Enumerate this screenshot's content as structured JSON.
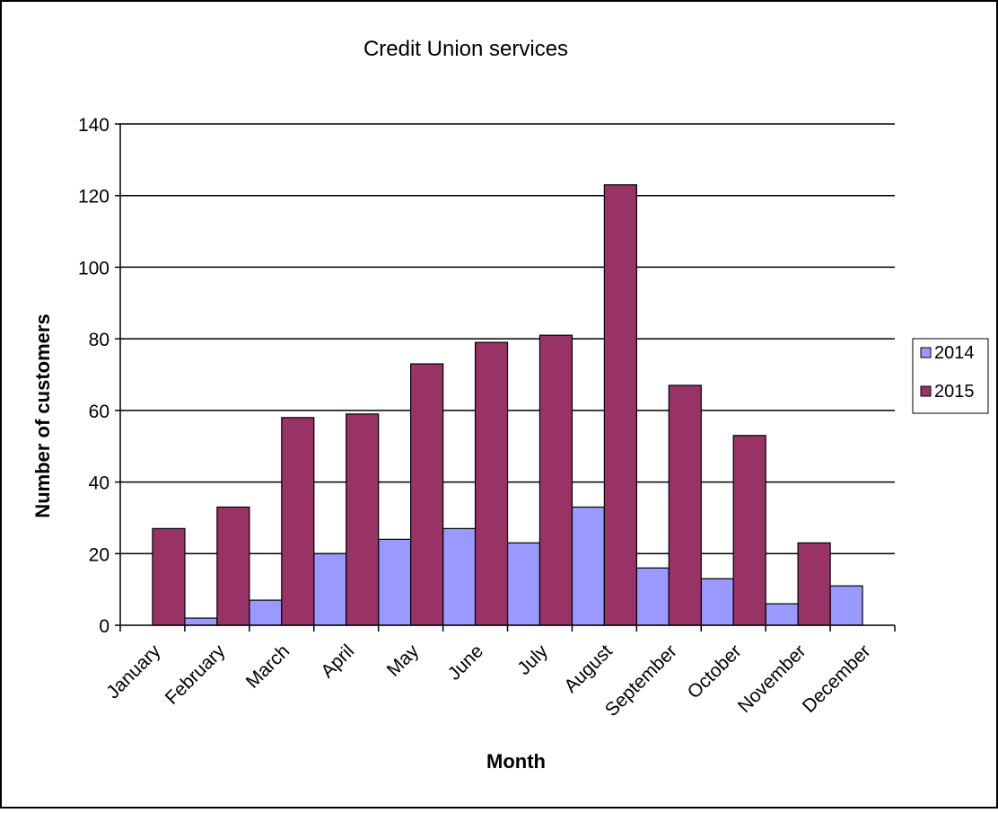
{
  "colors": {
    "2014": "#9999ff",
    "2015": "#993366",
    "background": "#ffffff",
    "frame": "#000000"
  },
  "chart_data": {
    "type": "bar",
    "title": "Credit Union services",
    "xlabel": "Month",
    "ylabel": "Number of customers",
    "categories": [
      "January",
      "February",
      "March",
      "April",
      "May",
      "June",
      "July",
      "August",
      "September",
      "October",
      "November",
      "December"
    ],
    "series": [
      {
        "name": "2014",
        "values": [
          0,
          2,
          7,
          20,
          24,
          27,
          23,
          33,
          16,
          13,
          6,
          11
        ]
      },
      {
        "name": "2015",
        "values": [
          27,
          33,
          58,
          59,
          73,
          79,
          81,
          123,
          67,
          53,
          23,
          0
        ]
      }
    ],
    "ylim": [
      0,
      140
    ],
    "yticks": [
      "0",
      "20",
      "40",
      "60",
      "80",
      "100",
      "120",
      "140"
    ],
    "grid": true,
    "legend_position": "right"
  }
}
